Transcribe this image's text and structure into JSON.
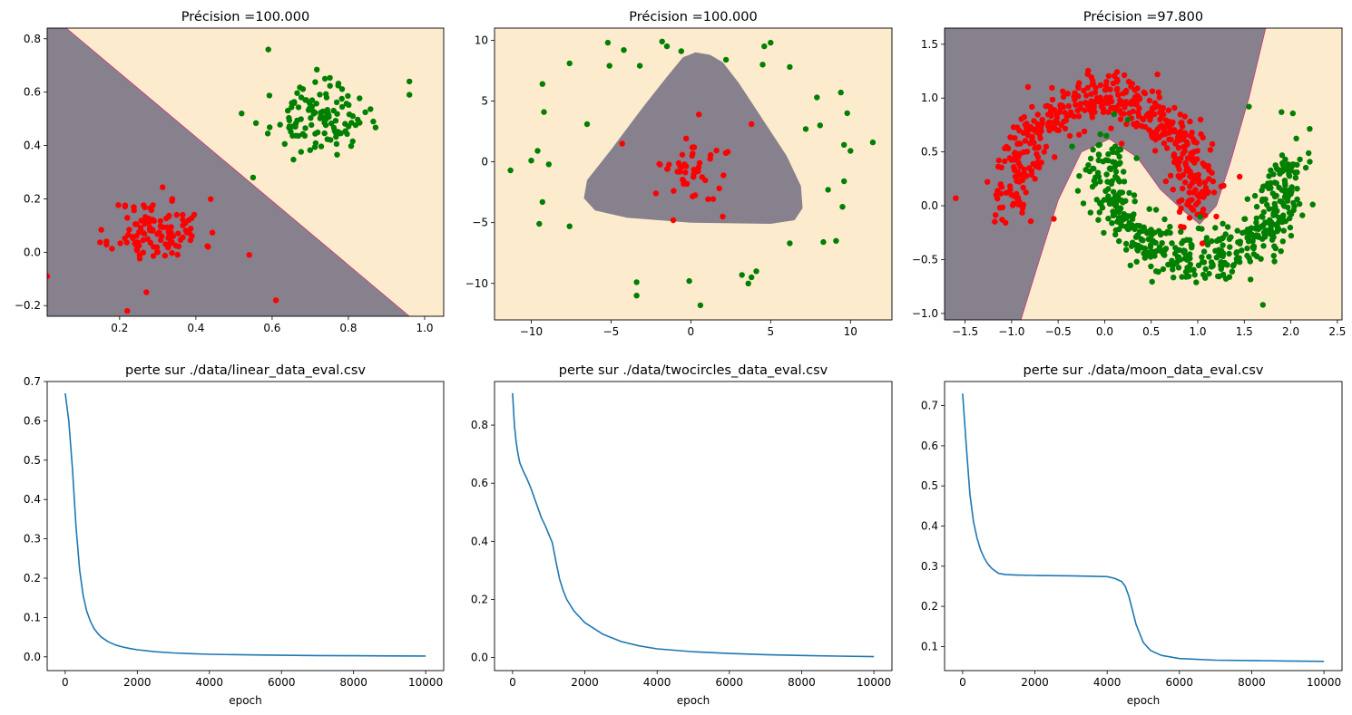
{
  "chart_data": [
    {
      "type": "scatter",
      "title": "Précision =100.000",
      "xlim": [
        0.01,
        1.05
      ],
      "ylim": [
        -0.24,
        0.84
      ],
      "xticks": [
        0.2,
        0.4,
        0.6,
        0.8,
        1.0
      ],
      "xtick_labels": [
        "0.2",
        "0.4",
        "0.6",
        "0.8",
        "1.0"
      ],
      "yticks": [
        -0.2,
        0.0,
        0.2,
        0.4,
        0.6,
        0.8
      ],
      "ytick_labels": [
        "−0.2",
        "0.0",
        "0.2",
        "0.4",
        "0.6",
        "0.8"
      ],
      "regions": [
        {
          "color": "#fdebcd",
          "polygon": [
            [
              0.01,
              -0.24
            ],
            [
              1.05,
              -0.24
            ],
            [
              1.05,
              0.84
            ],
            [
              0.01,
              0.84
            ]
          ]
        },
        {
          "color": "#86818d",
          "polygon": [
            [
              0.01,
              -0.24
            ],
            [
              0.01,
              0.84
            ],
            [
              0.06,
              0.84
            ],
            [
              0.96,
              -0.24
            ]
          ]
        }
      ],
      "boundary": [
        [
          0.06,
          0.84
        ],
        [
          0.96,
          -0.24
        ]
      ],
      "clusters": [
        {
          "color": "#ff0000",
          "center": [
            0.3,
            0.08
          ],
          "spread": [
            0.1,
            0.1
          ],
          "count": 120,
          "seed": 11
        },
        {
          "color": "#008000",
          "center": [
            0.72,
            0.5
          ],
          "spread": [
            0.1,
            0.1
          ],
          "count": 120,
          "seed": 23
        }
      ],
      "points": [
        {
          "color": "#ff0000",
          "xy": [
            [
              0.01,
              -0.09
            ],
            [
              0.27,
              -0.15
            ],
            [
              0.61,
              -0.18
            ],
            [
              0.22,
              -0.22
            ],
            [
              0.54,
              -0.01
            ]
          ]
        },
        {
          "color": "#008000",
          "xy": [
            [
              0.59,
              0.76
            ],
            [
              0.96,
              0.64
            ],
            [
              0.96,
              0.59
            ],
            [
              0.52,
              0.52
            ],
            [
              0.55,
              0.28
            ]
          ]
        }
      ]
    },
    {
      "type": "scatter",
      "title": "Précision =100.000",
      "xlim": [
        -12.3,
        12.6
      ],
      "ylim": [
        -13.0,
        11.0
      ],
      "xticks": [
        -10,
        -5,
        0,
        5,
        10
      ],
      "xtick_labels": [
        "−10",
        "−5",
        "0",
        "5",
        "10"
      ],
      "yticks": [
        -10,
        -5,
        0,
        5,
        10
      ],
      "ytick_labels": [
        "−10",
        "−5",
        "0",
        "5",
        "10"
      ],
      "regions": [
        {
          "color": "#fdebcd",
          "polygon": [
            [
              -12.3,
              -13
            ],
            [
              12.6,
              -13
            ],
            [
              12.6,
              11
            ],
            [
              -12.3,
              11
            ]
          ]
        },
        {
          "color": "#86818d",
          "polygon": [
            [
              0.3,
              9.0
            ],
            [
              1.2,
              8.8
            ],
            [
              2.0,
              8.2
            ],
            [
              3.0,
              6.5
            ],
            [
              4.5,
              3.5
            ],
            [
              6.0,
              0.5
            ],
            [
              6.9,
              -2.0
            ],
            [
              7.0,
              -3.8
            ],
            [
              6.5,
              -4.8
            ],
            [
              5.0,
              -5.1
            ],
            [
              0,
              -5.0
            ],
            [
              -4.0,
              -4.6
            ],
            [
              -6.0,
              -4.0
            ],
            [
              -6.7,
              -3.0
            ],
            [
              -6.5,
              -1.5
            ],
            [
              -5.0,
              1.0
            ],
            [
              -3.0,
              4.5
            ],
            [
              -1.5,
              7.0
            ],
            [
              -0.5,
              8.6
            ]
          ]
        }
      ],
      "clusters": [
        {
          "color": "#ff0000",
          "center": [
            0.3,
            -0.6
          ],
          "spread": [
            1.9,
            1.8
          ],
          "count": 45,
          "seed": 5
        }
      ],
      "points": [
        {
          "color": "#ff0000",
          "xy": [
            [
              -4.3,
              1.5
            ],
            [
              -1.1,
              -4.8
            ],
            [
              0.5,
              3.9
            ],
            [
              3.8,
              3.1
            ],
            [
              2.0,
              -4.5
            ]
          ]
        },
        {
          "color": "#008000",
          "xy": [
            [
              -11.3,
              -0.7
            ],
            [
              -10.0,
              0.1
            ],
            [
              -9.6,
              0.9
            ],
            [
              -9.3,
              6.4
            ],
            [
              -9.2,
              4.1
            ],
            [
              -9.3,
              -3.3
            ],
            [
              -9.5,
              -5.1
            ],
            [
              -8.9,
              -0.2
            ],
            [
              -7.6,
              -5.3
            ],
            [
              -7.6,
              8.1
            ],
            [
              -6.5,
              3.1
            ],
            [
              -5.2,
              9.8
            ],
            [
              -5.1,
              7.9
            ],
            [
              -4.2,
              9.2
            ],
            [
              -3.2,
              7.9
            ],
            [
              -1.8,
              9.9
            ],
            [
              -1.5,
              9.5
            ],
            [
              -0.6,
              9.1
            ],
            [
              2.2,
              8.4
            ],
            [
              4.6,
              9.5
            ],
            [
              5.0,
              9.8
            ],
            [
              4.5,
              8.0
            ],
            [
              6.2,
              7.8
            ],
            [
              7.2,
              2.7
            ],
            [
              8.1,
              3.0
            ],
            [
              7.9,
              5.3
            ],
            [
              9.4,
              5.7
            ],
            [
              9.8,
              4.0
            ],
            [
              9.6,
              1.4
            ],
            [
              10.0,
              0.9
            ],
            [
              11.4,
              1.6
            ],
            [
              9.6,
              -1.6
            ],
            [
              9.5,
              -3.7
            ],
            [
              8.6,
              -2.3
            ],
            [
              8.3,
              -6.6
            ],
            [
              9.1,
              -6.5
            ],
            [
              6.2,
              -6.7
            ],
            [
              3.2,
              -9.3
            ],
            [
              3.8,
              -9.5
            ],
            [
              4.1,
              -9.0
            ],
            [
              3.6,
              -10.0
            ],
            [
              0.6,
              -11.8
            ],
            [
              -0.1,
              -9.8
            ],
            [
              -3.4,
              -9.9
            ],
            [
              -3.4,
              -11.0
            ]
          ]
        }
      ]
    },
    {
      "type": "scatter",
      "title": "Précision =97.800",
      "xlim": [
        -1.72,
        2.55
      ],
      "ylim": [
        -1.06,
        1.65
      ],
      "xticks": [
        -1.5,
        -1.0,
        -0.5,
        0.0,
        0.5,
        1.0,
        1.5,
        2.0,
        2.5
      ],
      "xtick_labels": [
        "−1.5",
        "−1.0",
        "−0.5",
        "0.0",
        "0.5",
        "1.0",
        "1.5",
        "2.0",
        "2.5"
      ],
      "yticks": [
        -1.0,
        -0.5,
        0.0,
        0.5,
        1.0,
        1.5
      ],
      "ytick_labels": [
        "−1.0",
        "−0.5",
        "0.0",
        "0.5",
        "1.0",
        "1.5"
      ],
      "regions": [
        {
          "color": "#fdebcd",
          "polygon": [
            [
              -1.72,
              -1.06
            ],
            [
              2.55,
              -1.06
            ],
            [
              2.55,
              1.65
            ],
            [
              -1.72,
              1.65
            ]
          ]
        },
        {
          "color": "#86818d",
          "polygon": [
            [
              -1.72,
              -1.06
            ],
            [
              -1.72,
              1.65
            ],
            [
              1.73,
              1.65
            ],
            [
              1.55,
              1.0
            ],
            [
              1.35,
              0.4
            ],
            [
              1.2,
              0.0
            ],
            [
              1.02,
              -0.17
            ],
            [
              0.85,
              -0.05
            ],
            [
              0.6,
              0.15
            ],
            [
              0.35,
              0.45
            ],
            [
              0.05,
              0.62
            ],
            [
              -0.25,
              0.5
            ],
            [
              -0.5,
              0.05
            ],
            [
              -0.7,
              -0.5
            ],
            [
              -0.9,
              -1.06
            ]
          ]
        }
      ],
      "boundary": [
        [
          -0.9,
          -1.06
        ],
        [
          -0.7,
          -0.5
        ],
        [
          -0.5,
          0.05
        ],
        [
          -0.25,
          0.5
        ],
        [
          0.05,
          0.62
        ],
        [
          0.35,
          0.45
        ],
        [
          0.6,
          0.15
        ],
        [
          0.85,
          -0.05
        ],
        [
          1.02,
          -0.17
        ],
        [
          1.2,
          0.0
        ],
        [
          1.35,
          0.4
        ],
        [
          1.55,
          1.0
        ],
        [
          1.73,
          1.65
        ]
      ],
      "moons": [
        {
          "color": "#ff0000",
          "cx": 0.0,
          "cy": 0.0,
          "r": 1.0,
          "t0": 0.0,
          "t1": 3.14159,
          "sign": 1,
          "noise": 0.12,
          "count": 500,
          "seed": 7
        },
        {
          "color": "#008000",
          "cx": 1.0,
          "cy": 0.5,
          "r": 1.0,
          "t0": 0.0,
          "t1": 3.14159,
          "sign": -1,
          "noise": 0.12,
          "count": 500,
          "seed": 19
        }
      ],
      "points": [
        {
          "color": "#ff0000",
          "xy": [
            [
              -1.6,
              0.07
            ],
            [
              1.05,
              -0.35
            ],
            [
              1.2,
              -0.1
            ],
            [
              1.45,
              0.27
            ],
            [
              0.85,
              -0.2
            ]
          ]
        },
        {
          "color": "#008000",
          "xy": [
            [
              0.25,
              0.8
            ],
            [
              -0.35,
              0.55
            ],
            [
              0.1,
              0.85
            ],
            [
              1.55,
              0.92
            ],
            [
              1.9,
              0.87
            ],
            [
              1.7,
              -0.92
            ]
          ]
        }
      ]
    },
    {
      "type": "line",
      "title": "perte sur ./data/linear_data_eval.csv",
      "xlabel": "epoch",
      "xlim": [
        -500,
        10500
      ],
      "ylim": [
        -0.035,
        0.7
      ],
      "xticks": [
        0,
        2000,
        4000,
        6000,
        8000,
        10000
      ],
      "xtick_labels": [
        "0",
        "2000",
        "4000",
        "6000",
        "8000",
        "10000"
      ],
      "yticks": [
        0.0,
        0.1,
        0.2,
        0.3,
        0.4,
        0.5,
        0.6,
        0.7
      ],
      "ytick_labels": [
        "0.0",
        "0.1",
        "0.2",
        "0.3",
        "0.4",
        "0.5",
        "0.6",
        "0.7"
      ],
      "series": [
        {
          "color": "#1f77b4",
          "x": [
            0,
            100,
            200,
            300,
            400,
            500,
            600,
            700,
            800,
            900,
            1000,
            1200,
            1400,
            1600,
            1800,
            2000,
            2500,
            3000,
            3500,
            4000,
            5000,
            6000,
            7000,
            8000,
            9000,
            10000
          ],
          "values": [
            0.67,
            0.6,
            0.48,
            0.33,
            0.22,
            0.155,
            0.115,
            0.09,
            0.072,
            0.06,
            0.05,
            0.038,
            0.03,
            0.025,
            0.021,
            0.018,
            0.013,
            0.01,
            0.008,
            0.0065,
            0.005,
            0.004,
            0.0032,
            0.0027,
            0.0023,
            0.002
          ]
        }
      ]
    },
    {
      "type": "line",
      "title": "perte sur ./data/twocircles_data_eval.csv",
      "xlabel": "epoch",
      "xlim": [
        -500,
        10500
      ],
      "ylim": [
        -0.045,
        0.95
      ],
      "xticks": [
        0,
        2000,
        4000,
        6000,
        8000,
        10000
      ],
      "xtick_labels": [
        "0",
        "2000",
        "4000",
        "6000",
        "8000",
        "10000"
      ],
      "yticks": [
        0.0,
        0.2,
        0.4,
        0.6,
        0.8
      ],
      "ytick_labels": [
        "0.0",
        "0.2",
        "0.4",
        "0.6",
        "0.8"
      ],
      "series": [
        {
          "color": "#1f77b4",
          "x": [
            0,
            50,
            100,
            150,
            200,
            300,
            400,
            500,
            600,
            700,
            800,
            900,
            1000,
            1100,
            1200,
            1300,
            1400,
            1500,
            1700,
            2000,
            2500,
            3000,
            3500,
            4000,
            5000,
            6000,
            7000,
            8000,
            9000,
            10000
          ],
          "values": [
            0.91,
            0.8,
            0.74,
            0.7,
            0.67,
            0.64,
            0.615,
            0.585,
            0.55,
            0.515,
            0.48,
            0.455,
            0.425,
            0.395,
            0.33,
            0.27,
            0.23,
            0.2,
            0.16,
            0.12,
            0.08,
            0.055,
            0.04,
            0.03,
            0.02,
            0.014,
            0.01,
            0.007,
            0.005,
            0.003
          ]
        }
      ]
    },
    {
      "type": "line",
      "title": "perte sur ./data/moon_data_eval.csv",
      "xlabel": "epoch",
      "xlim": [
        -500,
        10500
      ],
      "ylim": [
        0.04,
        0.76
      ],
      "xticks": [
        0,
        2000,
        4000,
        6000,
        8000,
        10000
      ],
      "xtick_labels": [
        "0",
        "2000",
        "4000",
        "6000",
        "8000",
        "10000"
      ],
      "yticks": [
        0.1,
        0.2,
        0.3,
        0.4,
        0.5,
        0.6,
        0.7
      ],
      "ytick_labels": [
        "0.1",
        "0.2",
        "0.3",
        "0.4",
        "0.5",
        "0.6",
        "0.7"
      ],
      "series": [
        {
          "color": "#1f77b4",
          "x": [
            0,
            100,
            200,
            300,
            400,
            500,
            600,
            700,
            800,
            900,
            1000,
            1200,
            1500,
            2000,
            3000,
            4000,
            4200,
            4400,
            4500,
            4600,
            4700,
            4800,
            5000,
            5200,
            5500,
            6000,
            7000,
            8000,
            9000,
            10000
          ],
          "values": [
            0.73,
            0.6,
            0.48,
            0.41,
            0.37,
            0.34,
            0.32,
            0.305,
            0.295,
            0.288,
            0.282,
            0.279,
            0.278,
            0.277,
            0.276,
            0.274,
            0.27,
            0.262,
            0.25,
            0.225,
            0.19,
            0.155,
            0.11,
            0.09,
            0.078,
            0.07,
            0.066,
            0.065,
            0.064,
            0.063
          ]
        }
      ]
    }
  ]
}
